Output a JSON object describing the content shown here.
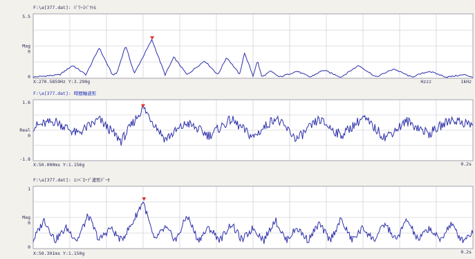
{
  "panels": [
    {
      "title": "F:\\a[377.dat]: ﾊﾟﾜｰｽﾍﾟｸﾄﾙ",
      "ylabel": "Mag",
      "y_top": "5.5",
      "y_mid": "0",
      "y_bottom": "0",
      "x_right": "1kHz",
      "x_mid": "Hzzz",
      "cursor": "X:270.5859Hz Y:3.290g",
      "title_blue": false
    },
    {
      "title": "F:\\a[377.dat]: 時間軸波形",
      "ylabel": "Real",
      "y_top": "1.6",
      "y_mid": "0",
      "y_bottom": "-1.8",
      "x_right": "0.2s",
      "x_mid": "",
      "cursor": "X:50.000ms Y:1.156g",
      "title_blue": true
    },
    {
      "title": "F:\\a[377.dat]: ｴﾝﾍﾞﾛｰﾌﾟ波形ﾃﾞｰﾀ",
      "ylabel": "Mag",
      "y_top": "1",
      "y_mid": "0",
      "y_bottom": "0",
      "x_right": "0.2s",
      "x_mid": "",
      "cursor": "X:50.391ms Y:1.150g",
      "title_blue": false
    }
  ],
  "chart_data": [
    {
      "type": "line",
      "title": "F:\\a[377.dat]: ﾊﾟﾜｰｽﾍﾟｸﾄﾙ",
      "xlabel": "",
      "ylabel": "Mag",
      "xlim": [
        0,
        1000
      ],
      "ylim": [
        0,
        5.5
      ],
      "grid": true,
      "marker": {
        "x": 270.59,
        "y": 3.29
      },
      "series": [
        {
          "x": [
            0,
            30,
            60,
            90,
            120,
            150,
            180,
            190,
            210,
            230,
            270,
            300,
            320,
            350,
            390,
            420,
            440,
            470,
            480,
            500,
            510,
            520,
            540,
            560,
            600,
            630,
            660,
            700,
            740,
            780,
            820,
            860,
            900,
            940,
            980,
            1000
          ],
          "y": [
            0.1,
            0.2,
            0.3,
            1.1,
            0.3,
            2.6,
            0.3,
            0.4,
            2.8,
            0.4,
            3.3,
            0.3,
            1.8,
            0.3,
            1.5,
            0.3,
            1.8,
            0.3,
            2.2,
            0.2,
            1.5,
            0.1,
            0.6,
            0.1,
            0.6,
            0.1,
            0.7,
            0.1,
            1.1,
            0.1,
            0.8,
            0.1,
            0.6,
            0.1,
            0.3,
            0.1
          ]
        }
      ]
    },
    {
      "type": "line",
      "title": "F:\\a[377.dat]: 時間軸波形",
      "xlabel": "",
      "ylabel": "Real",
      "xlim": [
        0,
        0.2
      ],
      "ylim": [
        -1.8,
        1.6
      ],
      "grid": true,
      "marker": {
        "x": 0.05,
        "y": 1.156
      },
      "series": [
        {
          "x": [
            0,
            0.01,
            0.02,
            0.03,
            0.04,
            0.05,
            0.06,
            0.07,
            0.08,
            0.09,
            0.1,
            0.11,
            0.12,
            0.13,
            0.14,
            0.15,
            0.16,
            0.17,
            0.18,
            0.19,
            0.2
          ],
          "y": [
            0.1,
            0.4,
            -0.3,
            0.5,
            -0.7,
            1.16,
            -0.6,
            0.3,
            -0.4,
            0.5,
            -0.5,
            0.6,
            -0.6,
            0.5,
            -0.4,
            0.6,
            -0.5,
            0.4,
            -0.3,
            0.5,
            0.2
          ]
        }
      ]
    },
    {
      "type": "line",
      "title": "F:\\a[377.dat]: ｴﾝﾍﾞﾛｰﾌﾟ波形ﾃﾞｰﾀ",
      "xlabel": "",
      "ylabel": "Mag",
      "xlim": [
        0,
        0.2
      ],
      "ylim": [
        0,
        1.5
      ],
      "grid": true,
      "marker": {
        "x": 0.0504,
        "y": 1.15
      },
      "series": [
        {
          "x": [
            0,
            0.005,
            0.01,
            0.015,
            0.02,
            0.025,
            0.03,
            0.035,
            0.04,
            0.045,
            0.05,
            0.055,
            0.06,
            0.065,
            0.07,
            0.075,
            0.08,
            0.085,
            0.09,
            0.095,
            0.1,
            0.105,
            0.11,
            0.115,
            0.12,
            0.125,
            0.13,
            0.135,
            0.14,
            0.145,
            0.15,
            0.155,
            0.16,
            0.165,
            0.17,
            0.175,
            0.18,
            0.185,
            0.19,
            0.195,
            0.2
          ],
          "y": [
            0.2,
            0.7,
            0.2,
            0.5,
            0.2,
            0.8,
            0.2,
            0.5,
            0.2,
            0.6,
            1.15,
            0.2,
            0.5,
            0.2,
            0.8,
            0.2,
            0.5,
            0.2,
            0.6,
            0.2,
            0.5,
            0.2,
            0.7,
            0.2,
            0.5,
            0.2,
            0.6,
            0.2,
            0.7,
            0.2,
            0.5,
            0.2,
            0.6,
            0.2,
            0.7,
            0.2,
            0.5,
            0.2,
            0.6,
            0.2,
            0.4
          ]
        }
      ]
    }
  ],
  "colors": {
    "background": "#f2f1ec",
    "plot_bg": "#ffffff",
    "grid": "#c4c4cc",
    "trace": "#2b2ea8",
    "marker": "#e0312b",
    "text": "#2a2a55",
    "title_blue": "#1f2fb8"
  }
}
